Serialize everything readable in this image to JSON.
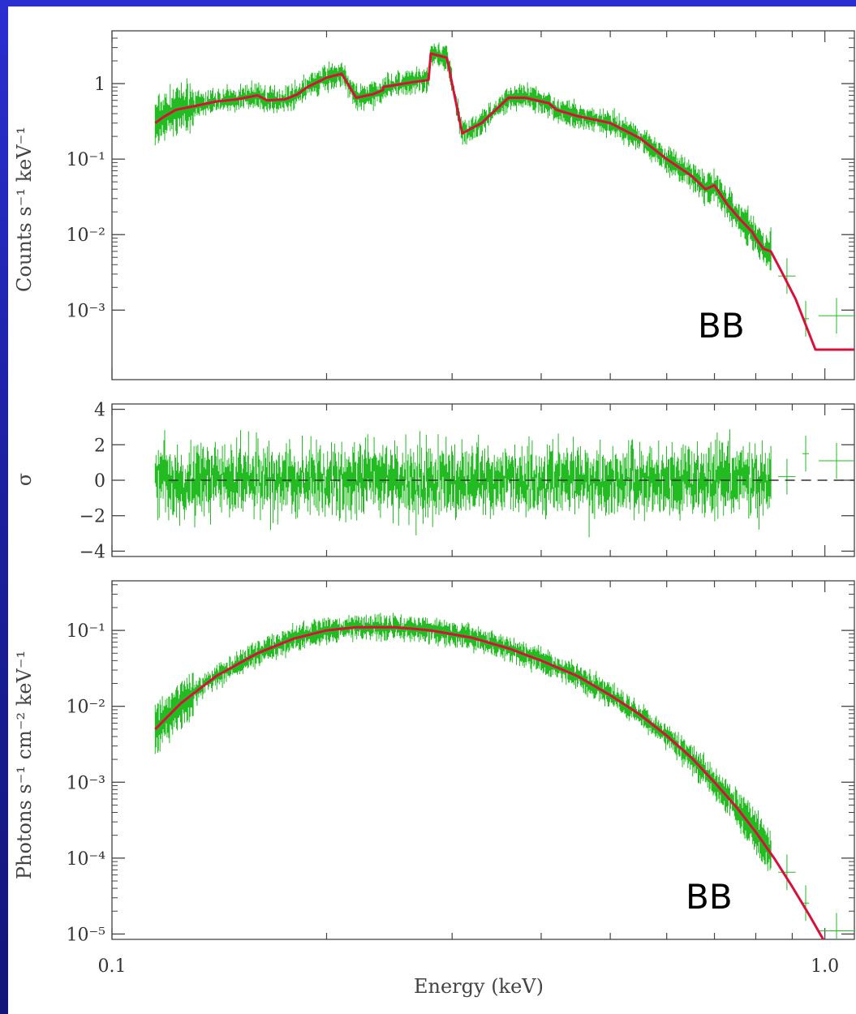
{
  "colors": {
    "background": "#1f24b8",
    "panel": "#ffffff",
    "data": "#22bb22",
    "model": "#d8103a",
    "axis": "#444444"
  },
  "chart_data": [
    {
      "type": "line",
      "panel": "top",
      "ylabel": "Counts s⁻¹ keV⁻¹",
      "xlabel": "",
      "xscale": "log",
      "yscale": "log",
      "xlim": [
        0.1,
        1.1
      ],
      "ylim": [
        0.00012,
        5
      ],
      "yticks": [
        {
          "value": 1,
          "label": "1"
        },
        {
          "value": 0.1,
          "label": "10⁻¹"
        },
        {
          "value": 0.01,
          "label": "10⁻²"
        },
        {
          "value": 0.001,
          "label": "10⁻³"
        }
      ],
      "annotation": "BB",
      "series": [
        {
          "role": "model",
          "x": [
            0.115,
            0.118,
            0.123,
            0.13,
            0.14,
            0.15,
            0.16,
            0.165,
            0.175,
            0.182,
            0.188,
            0.2,
            0.21,
            0.22,
            0.232,
            0.24,
            0.24,
            0.265,
            0.275,
            0.278,
            0.28,
            0.285,
            0.29,
            0.295,
            0.3,
            0.31,
            0.33,
            0.36,
            0.38,
            0.41,
            0.42,
            0.45,
            0.5,
            0.55,
            0.6,
            0.65,
            0.68,
            0.7,
            0.73,
            0.76,
            0.79,
            0.8,
            0.82,
            0.84,
            0.87,
            0.87,
            0.91,
            0.91,
            0.97,
            0.97,
            1.1
          ],
          "y": [
            0.3,
            0.36,
            0.45,
            0.5,
            0.58,
            0.62,
            0.7,
            0.6,
            0.62,
            0.72,
            0.9,
            1.2,
            1.35,
            0.65,
            0.72,
            0.82,
            0.9,
            1.05,
            1.1,
            1.12,
            2.5,
            2.4,
            2.3,
            2.2,
            1.0,
            0.22,
            0.3,
            0.65,
            0.65,
            0.55,
            0.45,
            0.37,
            0.3,
            0.19,
            0.1,
            0.06,
            0.04,
            0.045,
            0.025,
            0.016,
            0.011,
            0.009,
            0.0065,
            0.006,
            0.0032,
            0.0032,
            0.0014,
            0.0014,
            0.0003,
            0.0003,
            0.0003
          ]
        }
      ]
    },
    {
      "type": "line",
      "panel": "middle",
      "ylabel": "σ",
      "xscale": "log",
      "xlim": [
        0.1,
        1.1
      ],
      "ylim": [
        -4.3,
        4.3
      ],
      "yticks": [
        {
          "value": 4,
          "label": "4"
        },
        {
          "value": 2,
          "label": "2"
        },
        {
          "value": 0,
          "label": "0"
        },
        {
          "value": -2,
          "label": "−2"
        },
        {
          "value": -4,
          "label": "−4"
        }
      ],
      "reference_line": 0
    },
    {
      "type": "line",
      "panel": "bottom",
      "ylabel": "Photons s⁻¹ cm⁻² keV⁻¹",
      "xlabel": "Energy (keV)",
      "xscale": "log",
      "yscale": "log",
      "xlim": [
        0.1,
        1.1
      ],
      "ylim": [
        8.5e-06,
        0.45
      ],
      "xticks": [
        {
          "value": 0.1,
          "label": "0.1"
        },
        {
          "value": 1.0,
          "label": "1.0"
        }
      ],
      "yticks": [
        {
          "value": 0.1,
          "label": "10⁻¹"
        },
        {
          "value": 0.01,
          "label": "10⁻²"
        },
        {
          "value": 0.001,
          "label": "10⁻³"
        },
        {
          "value": 0.0001,
          "label": "10⁻⁴"
        },
        {
          "value": 1e-05,
          "label": "10⁻⁵"
        }
      ],
      "annotation": "BB",
      "series": [
        {
          "role": "model",
          "x": [
            0.115,
            0.125,
            0.14,
            0.16,
            0.18,
            0.2,
            0.22,
            0.25,
            0.28,
            0.32,
            0.36,
            0.4,
            0.45,
            0.5,
            0.55,
            0.6,
            0.65,
            0.7,
            0.75,
            0.8,
            0.85,
            0.9,
            0.95,
            1.0,
            1.05
          ],
          "y": [
            0.005,
            0.011,
            0.025,
            0.05,
            0.078,
            0.1,
            0.11,
            0.11,
            0.1,
            0.08,
            0.058,
            0.04,
            0.025,
            0.014,
            0.0078,
            0.0041,
            0.0021,
            0.001,
            0.00048,
            0.00022,
            9.8e-05,
            4.2e-05,
            1.8e-05,
            7.8e-06,
            3.2e-06
          ]
        }
      ]
    }
  ]
}
